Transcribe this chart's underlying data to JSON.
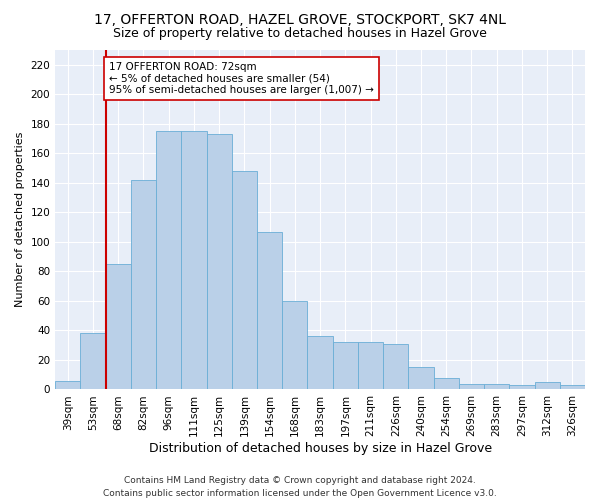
{
  "title1": "17, OFFERTON ROAD, HAZEL GROVE, STOCKPORT, SK7 4NL",
  "title2": "Size of property relative to detached houses in Hazel Grove",
  "xlabel": "Distribution of detached houses by size in Hazel Grove",
  "ylabel": "Number of detached properties",
  "bar_labels": [
    "39sqm",
    "53sqm",
    "68sqm",
    "82sqm",
    "96sqm",
    "111sqm",
    "125sqm",
    "139sqm",
    "154sqm",
    "168sqm",
    "183sqm",
    "197sqm",
    "211sqm",
    "226sqm",
    "240sqm",
    "254sqm",
    "269sqm",
    "283sqm",
    "297sqm",
    "312sqm",
    "326sqm"
  ],
  "bar_heights": [
    6,
    38,
    85,
    142,
    175,
    175,
    173,
    148,
    107,
    60,
    36,
    32,
    32,
    31,
    15,
    8,
    4,
    4,
    3,
    5,
    3
  ],
  "bar_color": "#bad0e8",
  "bar_edge_color": "#6aaed6",
  "vline_x": 2.0,
  "vline_color": "#cc0000",
  "annotation_text": "17 OFFERTON ROAD: 72sqm\n← 5% of detached houses are smaller (54)\n95% of semi-detached houses are larger (1,007) →",
  "annotation_box_color": "#ffffff",
  "annotation_box_edge_color": "#cc0000",
  "ylim": [
    0,
    230
  ],
  "yticks": [
    0,
    20,
    40,
    60,
    80,
    100,
    120,
    140,
    160,
    180,
    200,
    220
  ],
  "bg_color": "#e8eef8",
  "footer1": "Contains HM Land Registry data © Crown copyright and database right 2024.",
  "footer2": "Contains public sector information licensed under the Open Government Licence v3.0.",
  "title1_fontsize": 10,
  "title2_fontsize": 9,
  "xlabel_fontsize": 9,
  "ylabel_fontsize": 8,
  "tick_fontsize": 7.5,
  "annotation_fontsize": 7.5,
  "footer_fontsize": 6.5
}
